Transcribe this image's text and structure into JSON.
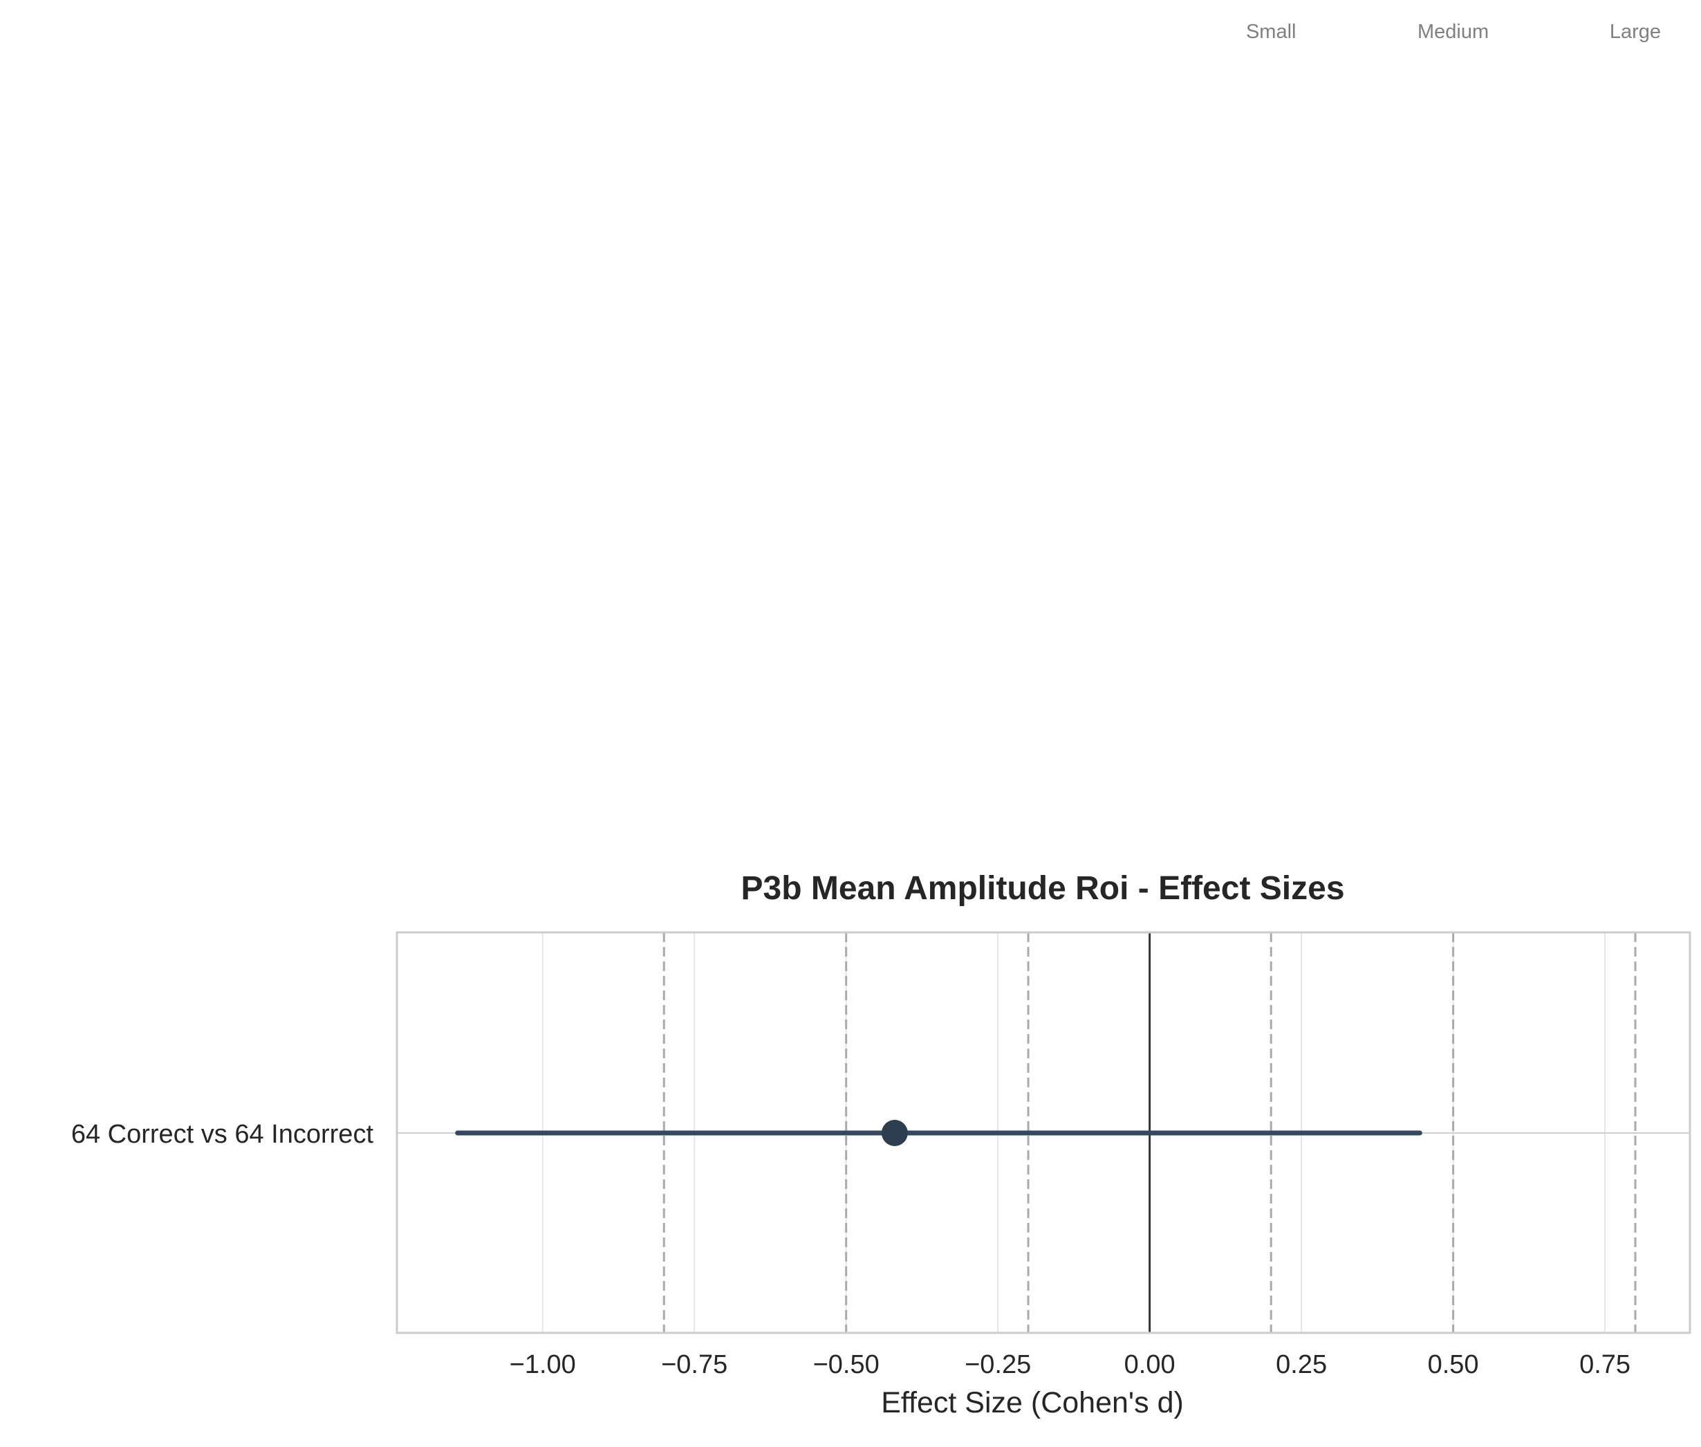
{
  "chart_data": {
    "type": "forest",
    "title": "P3b Mean Amplitude Roi - Effect Sizes",
    "xlabel": "Effect Size (Cohen's d)",
    "ylabel": "",
    "xlim": [
      -1.24,
      0.89
    ],
    "xticks": [
      -1.0,
      -0.75,
      -0.5,
      -0.25,
      0.0,
      0.25,
      0.5,
      0.75
    ],
    "xtick_labels": [
      "−1.00",
      "−0.75",
      "−0.50",
      "−0.25",
      "0.00",
      "0.25",
      "0.50",
      "0.75"
    ],
    "grid": true,
    "zero_line": 0.0,
    "comparisons": [
      {
        "label": "64 Correct vs 64 Incorrect",
        "d": -0.42,
        "ci_low": -1.14,
        "ci_high": 0.445
      }
    ],
    "thresholds": [
      {
        "label": "Small",
        "value": 0.2
      },
      {
        "label": "Medium",
        "value": 0.5
      },
      {
        "label": "Large",
        "value": 0.8
      }
    ],
    "threshold_lines": [
      -0.8,
      -0.5,
      -0.2,
      0.2,
      0.5,
      0.8
    ]
  },
  "colors": {
    "point": "#2c3e50",
    "ci_line": "#34495e",
    "zero_line": "#333333",
    "threshold_line": "#aaaaaa",
    "grid": "#e6e6e6",
    "frame": "#cccccc",
    "text": "#262626",
    "threshold_text": "#808080"
  }
}
